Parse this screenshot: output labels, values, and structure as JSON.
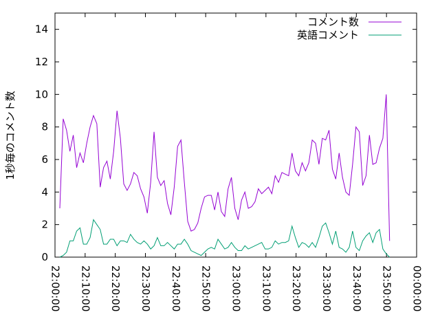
{
  "chart_data": {
    "type": "line",
    "y_label": "1秒毎のコメント数",
    "x": [
      "22:01:36",
      "22:02:43",
      "22:03:50",
      "22:04:57",
      "22:06:04",
      "22:07:11",
      "22:08:18",
      "22:09:25",
      "22:10:32",
      "22:11:39",
      "22:12:46",
      "22:13:53",
      "22:15:00",
      "22:16:07",
      "22:17:14",
      "22:18:21",
      "22:19:28",
      "22:20:35",
      "22:21:42",
      "22:22:49",
      "22:23:56",
      "22:25:03",
      "22:26:10",
      "22:27:17",
      "22:28:24",
      "22:29:31",
      "22:30:38",
      "22:31:45",
      "22:32:52",
      "22:33:59",
      "22:35:06",
      "22:36:13",
      "22:37:20",
      "22:38:27",
      "22:39:34",
      "22:40:41",
      "22:41:48",
      "22:42:55",
      "22:44:02",
      "22:45:09",
      "22:46:16",
      "22:47:23",
      "22:48:30",
      "22:49:37",
      "22:50:44",
      "22:51:51",
      "22:52:58",
      "22:54:05",
      "22:55:12",
      "22:56:19",
      "22:57:26",
      "22:58:33",
      "22:59:40",
      "23:00:47",
      "23:01:54",
      "23:03:01",
      "23:04:08",
      "23:05:15",
      "23:06:22",
      "23:07:29",
      "23:08:36",
      "23:09:43",
      "23:10:50",
      "23:11:57",
      "23:13:04",
      "23:14:11",
      "23:15:18",
      "23:16:25",
      "23:17:32",
      "23:18:39",
      "23:19:46",
      "23:20:53",
      "23:22:00",
      "23:23:07",
      "23:24:14",
      "23:25:21",
      "23:26:28",
      "23:27:35",
      "23:28:42",
      "23:29:49",
      "23:30:56",
      "23:32:03",
      "23:33:10",
      "23:34:17",
      "23:35:24",
      "23:36:31",
      "23:37:38",
      "23:38:45",
      "23:39:52",
      "23:40:59",
      "23:42:06",
      "23:43:13",
      "23:44:20",
      "23:45:27",
      "23:46:34",
      "23:47:41",
      "23:48:48",
      "23:49:55",
      "23:51:02"
    ],
    "series": [
      {
        "name": "コメント数",
        "color": "#9400d3",
        "values": [
          3.0,
          8.5,
          7.8,
          6.5,
          7.5,
          5.5,
          6.4,
          5.8,
          7.0,
          8.0,
          8.7,
          8.2,
          4.3,
          5.5,
          5.9,
          4.8,
          6.5,
          9.0,
          7.3,
          4.5,
          4.1,
          4.5,
          5.2,
          5.0,
          4.2,
          3.7,
          2.7,
          4.6,
          7.7,
          4.9,
          4.4,
          4.7,
          3.3,
          2.6,
          4.3,
          6.8,
          7.2,
          4.6,
          2.2,
          1.6,
          1.7,
          2.1,
          3.0,
          3.7,
          3.8,
          3.8,
          2.9,
          4.0,
          2.8,
          2.5,
          4.2,
          4.9,
          3.0,
          2.3,
          3.5,
          4.0,
          3.0,
          3.1,
          3.4,
          4.2,
          3.9,
          4.1,
          4.3,
          3.9,
          5.0,
          4.6,
          5.2,
          5.1,
          5.0,
          6.4,
          5.3,
          5.0,
          5.8,
          5.3,
          5.8,
          7.2,
          7.0,
          5.7,
          7.3,
          7.2,
          7.8,
          5.4,
          4.8,
          6.4,
          4.9,
          4.0,
          3.8,
          5.7,
          8.0,
          7.7,
          4.4,
          5.0,
          7.5,
          5.7,
          5.8,
          6.7,
          7.3,
          10.0,
          1.0
        ]
      },
      {
        "name": "英語コメント",
        "color": "#009e73",
        "values": [
          0,
          0.1,
          0.3,
          1.0,
          1.0,
          1.6,
          1.8,
          0.8,
          0.8,
          1.2,
          2.3,
          2.0,
          1.7,
          0.8,
          0.8,
          1.1,
          1.1,
          0.7,
          1.0,
          1.0,
          0.9,
          1.4,
          1.1,
          0.9,
          0.8,
          1.0,
          0.8,
          0.5,
          0.7,
          1.2,
          0.7,
          0.7,
          0.9,
          0.7,
          0.5,
          0.8,
          0.8,
          1.1,
          0.8,
          0.4,
          0.3,
          0.2,
          0.1,
          0.3,
          0.5,
          0.6,
          0.5,
          1.1,
          0.8,
          0.5,
          0.6,
          0.9,
          0.6,
          0.4,
          0.4,
          0.7,
          0.5,
          0.6,
          0.7,
          0.8,
          0.9,
          0.5,
          0.5,
          0.6,
          1.0,
          0.8,
          0.9,
          0.9,
          1.0,
          1.9,
          1.2,
          0.6,
          0.9,
          0.8,
          0.6,
          0.9,
          0.6,
          1.2,
          1.9,
          2.1,
          1.5,
          0.8,
          1.6,
          0.6,
          0.5,
          0.3,
          0.6,
          1.6,
          0.6,
          0.4,
          1.0,
          1.3,
          1.5,
          0.9,
          1.5,
          1.7,
          0.5,
          0.2,
          0.0
        ]
      }
    ],
    "xlim": [
      "22:00:00",
      "00:00:00"
    ],
    "xticks": [
      "22:00:00",
      "22:10:00",
      "22:20:00",
      "22:30:00",
      "22:40:00",
      "22:50:00",
      "23:00:00",
      "23:10:00",
      "23:20:00",
      "23:30:00",
      "23:40:00",
      "23:50:00",
      "00:00:00"
    ],
    "ylim": [
      0,
      15
    ],
    "yticks": [
      0,
      2,
      4,
      6,
      8,
      10,
      12,
      14
    ],
    "legend": "top-right",
    "grid": false
  }
}
